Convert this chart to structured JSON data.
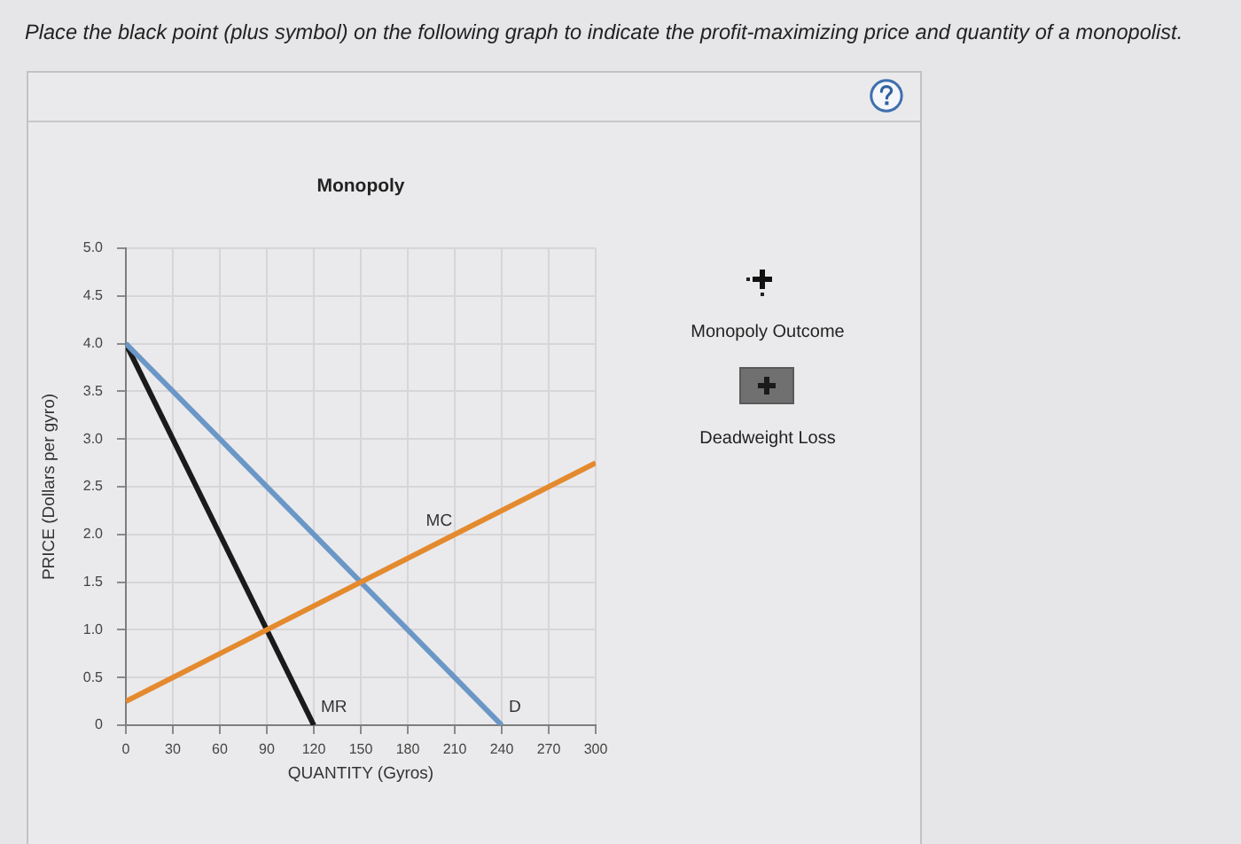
{
  "chart_data": {
    "type": "line",
    "title": "Monopoly",
    "xlabel": "QUANTITY (Gyros)",
    "ylabel": "PRICE (Dollars per gyro)",
    "annotations": [
      "Place the black point (plus symbol) on the following graph to indicate the profit-maximizing price and quantity of a monopolist.",
      "Monopoly Outcome",
      "Deadweight Loss"
    ],
    "series": [
      {
        "name": "MC",
        "color": "#e48a2e",
        "x": [
          0,
          300
        ],
        "values": [
          0.25,
          2.75
        ]
      },
      {
        "name": "D",
        "color": "#6b97c7",
        "x": [
          0,
          240
        ],
        "values": [
          4,
          0
        ]
      },
      {
        "name": "MR",
        "color": "#1a1a1a",
        "x": [
          0,
          120
        ],
        "values": [
          4,
          0
        ]
      }
    ],
    "xlim": [
      0,
      300
    ],
    "xticks": [
      0,
      30,
      60,
      90,
      120,
      150,
      180,
      210,
      240,
      270,
      300
    ],
    "ylim": [
      0,
      5
    ],
    "yticks": [
      0,
      0.5,
      {
        "value": 1,
        "label": "1.0"
      },
      1.5,
      {
        "value": 2,
        "label": "2.0"
      },
      2.5,
      {
        "value": 3,
        "label": "3.0"
      },
      3.5,
      {
        "value": 4,
        "label": "4.0"
      },
      4.5,
      {
        "value": 5,
        "label": "5.0"
      }
    ],
    "grid": true,
    "marker": "none",
    "line_style": "solid"
  }
}
